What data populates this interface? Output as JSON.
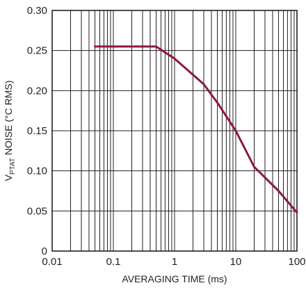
{
  "chart_data": {
    "type": "line",
    "xscale": "log",
    "xlim": [
      0.01,
      100
    ],
    "ylim": [
      0,
      0.3
    ],
    "grid": true,
    "xticks": [
      "0.01",
      "0.1",
      "1",
      "10",
      "100"
    ],
    "xtick_values": [
      0.01,
      0.1,
      1,
      10,
      100
    ],
    "yticks": [
      "0",
      "0.05",
      "0.10",
      "0.15",
      "0.20",
      "0.25",
      "0.30"
    ],
    "ytick_values": [
      0,
      0.05,
      0.1,
      0.15,
      0.2,
      0.25,
      0.3
    ],
    "xlabel": "AVERAGING TIME (ms)",
    "ylabel": {
      "prefix": "V",
      "subscript": "PTAT",
      "suffix": " NOISE (°C RMS)"
    },
    "series": [
      {
        "color": "#8b1a3a",
        "x": [
          0.05,
          0.1,
          0.5,
          1,
          3,
          5,
          10,
          20,
          50,
          100
        ],
        "y": [
          0.255,
          0.255,
          0.255,
          0.24,
          0.208,
          0.185,
          0.15,
          0.105,
          0.075,
          0.048
        ]
      }
    ]
  }
}
